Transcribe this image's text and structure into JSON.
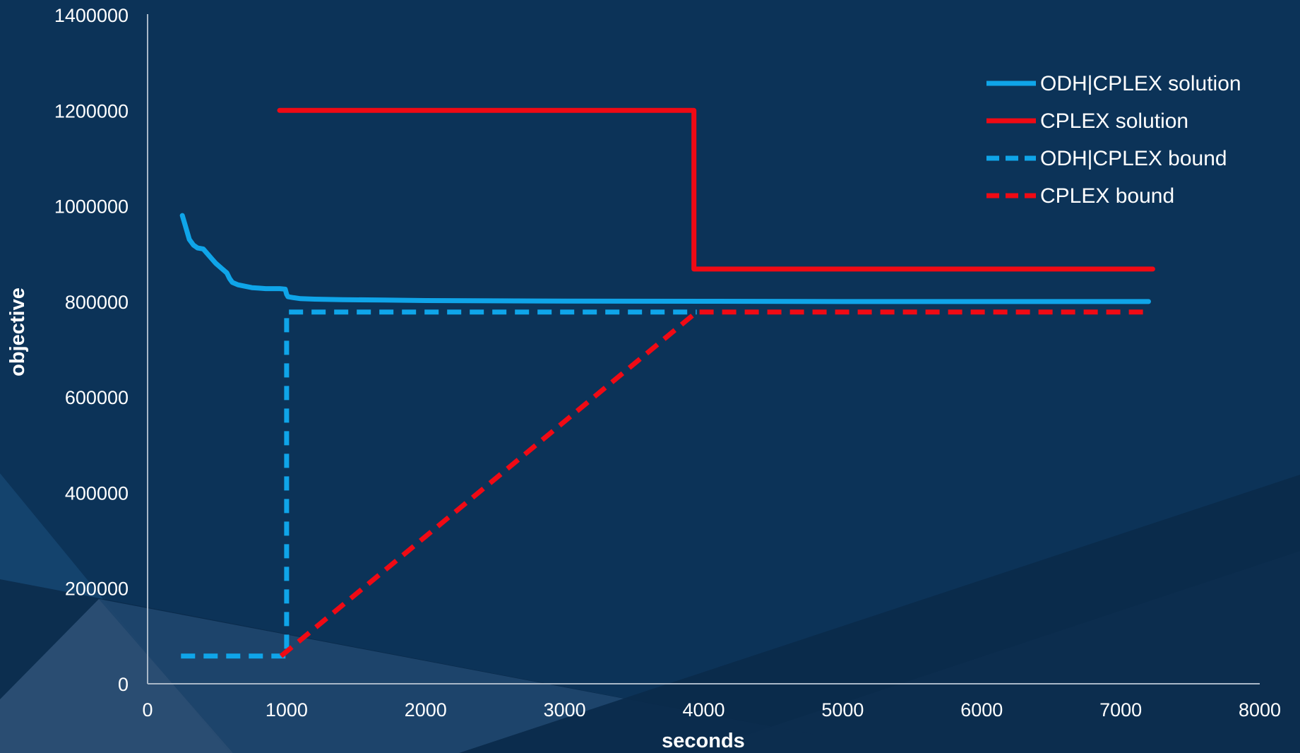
{
  "chart_data": {
    "type": "line",
    "xlabel": "seconds",
    "ylabel": "objective",
    "xlim": [
      0,
      8000
    ],
    "ylim": [
      0,
      1400000
    ],
    "x_ticks": [
      "0",
      "1000",
      "2000",
      "3000",
      "4000",
      "5000",
      "6000",
      "7000",
      "8000"
    ],
    "y_ticks": [
      "0",
      "200000",
      "400000",
      "600000",
      "800000",
      "1000000",
      "1200000",
      "1400000"
    ],
    "grid": false,
    "legend_position": "top-right",
    "series": [
      {
        "name": "ODH|CPLEX solution",
        "color": "#0fa5e9",
        "style": "solid",
        "x": [
          250,
          270,
          300,
          330,
          360,
          400,
          430,
          460,
          490,
          530,
          570,
          590,
          610,
          650,
          700,
          750,
          800,
          850,
          900,
          950,
          990,
          1000,
          1010,
          1050,
          1100,
          1200,
          1400,
          1700,
          2000,
          3000,
          4000,
          5000,
          6000,
          7200
        ],
        "values": [
          980000,
          960000,
          930000,
          918000,
          912000,
          910000,
          900000,
          890000,
          880000,
          870000,
          860000,
          848000,
          840000,
          835000,
          832000,
          829000,
          828000,
          827000,
          827000,
          827000,
          826000,
          815000,
          810000,
          808000,
          806000,
          805000,
          804000,
          803000,
          802000,
          801000,
          800500,
          800000,
          800000,
          800000
        ]
      },
      {
        "name": "CPLEX solution",
        "color": "#f00a14",
        "style": "solid",
        "x": [
          950,
          3930,
          3930,
          7230
        ],
        "values": [
          1200000,
          1200000,
          868000,
          868000
        ]
      },
      {
        "name": "ODH|CPLEX bound",
        "color": "#0fa5e9",
        "style": "dashed",
        "x": [
          240,
          1000,
          1000,
          3950
        ],
        "values": [
          58000,
          58000,
          778000,
          778000
        ]
      },
      {
        "name": "CPLEX bound",
        "color": "#f00a14",
        "style": "dashed",
        "x": [
          960,
          3950,
          7200
        ],
        "values": [
          58000,
          778000,
          778000
        ]
      }
    ]
  }
}
